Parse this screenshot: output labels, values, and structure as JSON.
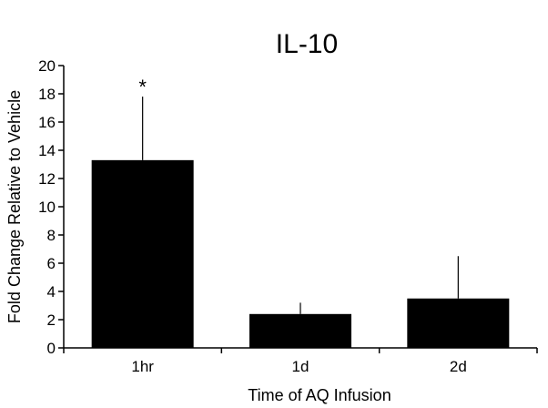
{
  "chart_data": {
    "type": "bar",
    "title": "IL-10",
    "xlabel": "Time of AQ Infusion",
    "ylabel": "Fold Change Relative to Vehicle",
    "categories": [
      "1hr",
      "1d",
      "2d"
    ],
    "values": [
      13.3,
      2.4,
      3.5
    ],
    "error_upper": [
      17.8,
      3.2,
      6.5
    ],
    "annotations": [
      {
        "category": "1hr",
        "text": "*"
      }
    ],
    "ylim": [
      0,
      20
    ],
    "yticks": [
      "0",
      "2",
      "4",
      "6",
      "8",
      "10",
      "12",
      "14",
      "16",
      "18",
      "20"
    ],
    "grid": false,
    "legend": "none",
    "colors": {
      "bar": "#000000",
      "axis": "#000000",
      "background": "#ffffff"
    }
  }
}
